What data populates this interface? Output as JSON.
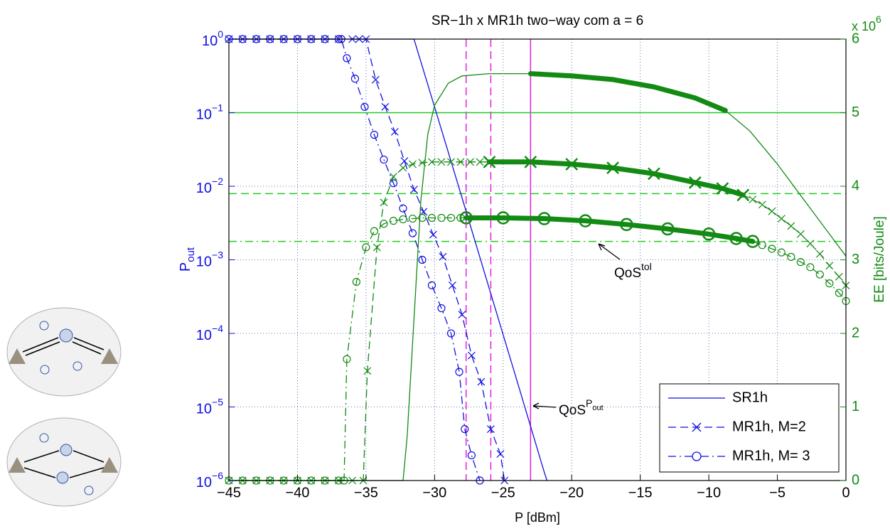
{
  "chart_data": {
    "type": "line",
    "title": "SR−1h x MR1h two−way com a = 6",
    "xlabel": "P [dBm]",
    "ylabel": {
      "text": "P",
      "sub": "out"
    },
    "y2label": "EE [bits/Joule]",
    "y2_multiplier": {
      "text": "x 10",
      "exponent": "6"
    },
    "xlim": [
      -45,
      0
    ],
    "ylim": [
      1e-06,
      1
    ],
    "ylog": true,
    "y2lim": [
      0,
      6
    ],
    "xticks": [
      {
        "value": -45,
        "label": "−45"
      },
      {
        "value": -40,
        "label": "−40"
      },
      {
        "value": -35,
        "label": "−35"
      },
      {
        "value": -30,
        "label": "−30"
      },
      {
        "value": -25,
        "label": "−25"
      },
      {
        "value": -20,
        "label": "−20"
      },
      {
        "value": -15,
        "label": "−15"
      },
      {
        "value": -10,
        "label": "−10"
      },
      {
        "value": -5,
        "label": "−5"
      },
      0
    ],
    "yticks": [
      {
        "value": 1e-06,
        "label": "10",
        "exponent": "−6"
      },
      {
        "value": 1e-05,
        "label": "10",
        "exponent": "−5"
      },
      {
        "value": 0.0001,
        "label": "10",
        "exponent": "−4"
      },
      {
        "value": 0.001,
        "label": "10",
        "exponent": "−3"
      },
      {
        "value": 0.01,
        "label": "10",
        "exponent": "−2"
      },
      {
        "value": 0.1,
        "label": "10",
        "exponent": "−1"
      },
      {
        "value": 1,
        "label": "10",
        "exponent": "0"
      }
    ],
    "y2ticks": [
      0,
      1,
      2,
      3,
      4,
      5,
      6
    ],
    "grid": true,
    "legend": "lower right",
    "series": [
      {
        "name": "SR1h",
        "color": "#1010e0",
        "style": "solid",
        "marker": "none",
        "x": [
          -45,
          -31.5,
          -30,
          -28,
          -26,
          -24,
          -22,
          -21.8
        ],
        "values": [
          1,
          1,
          0.12,
          0.007,
          0.0004,
          2.3e-05,
          1.3e-06,
          1e-06
        ]
      },
      {
        "name": "MR1h, M=2",
        "color": "#1010e0",
        "style": "dashed",
        "marker": "x",
        "x": [
          -45,
          -44,
          -43,
          -42,
          -41,
          -40,
          -39,
          -38,
          -37,
          -36,
          -35.5,
          -35,
          -34.3,
          -33.6,
          -32.9,
          -32.2,
          -31.5,
          -30.8,
          -30.1,
          -29.4,
          -28.7,
          -28,
          -27.3,
          -26.6,
          -25.9,
          -25.2,
          -24.9
        ],
        "values": [
          1,
          1,
          1,
          1,
          1,
          1,
          1,
          1,
          1,
          1,
          1,
          1,
          0.28,
          0.12,
          0.055,
          0.022,
          0.009,
          0.0045,
          0.0022,
          0.0011,
          0.00045,
          0.00018,
          5e-05,
          2.2e-05,
          5e-06,
          2.3e-06,
          1e-06
        ]
      },
      {
        "name": "MR1h, M= 3",
        "color": "#1010e0",
        "style": "dashdot",
        "marker": "o",
        "x": [
          -45,
          -44,
          -43,
          -42,
          -41,
          -40,
          -39,
          -38,
          -37,
          -36.8,
          -36.4,
          -35.8,
          -35.1,
          -34.4,
          -33.7,
          -33,
          -32.3,
          -31.6,
          -30.9,
          -30.2,
          -29.5,
          -28.8,
          -28.2,
          -27.8,
          -27.3,
          -26.7
        ],
        "values": [
          1,
          1,
          1,
          1,
          1,
          1,
          1,
          1,
          1,
          1,
          0.55,
          0.29,
          0.12,
          0.05,
          0.023,
          0.011,
          0.005,
          0.0023,
          0.001,
          0.00045,
          0.00022,
          0.0001,
          3e-05,
          5e-06,
          2.2e-06,
          1e-06
        ]
      },
      {
        "color": "#138a13",
        "axis": "y2",
        "style": "solid",
        "marker": "none",
        "feasible_range": [
          -23,
          -8.8
        ],
        "x": [
          -45,
          -32.3,
          -32,
          -31.5,
          -31,
          -30.5,
          -30,
          -29,
          -28,
          -26,
          -23,
          -20,
          -17,
          -14,
          -11,
          -8.8,
          -7,
          -5,
          -3,
          -1,
          0
        ],
        "values": [
          0,
          0,
          0.6,
          2.2,
          3.8,
          4.7,
          5.1,
          5.4,
          5.5,
          5.53,
          5.53,
          5.5,
          5.45,
          5.35,
          5.2,
          5.03,
          4.75,
          4.3,
          3.8,
          3.3,
          3.05
        ]
      },
      {
        "color": "#138a13",
        "axis": "y2",
        "style": "dashed",
        "marker": "x",
        "feasible_range": [
          -26,
          -7.5
        ],
        "x": [
          -45,
          -44,
          -43,
          -42,
          -41,
          -40,
          -39,
          -38,
          -37,
          -36,
          -35.2,
          -34.9,
          -34.2,
          -33.7,
          -33,
          -32.3,
          -31.6,
          -30.9,
          -30.2,
          -29.5,
          -28.8,
          -28.1,
          -27.4,
          -26.7,
          -26,
          -23,
          -20,
          -17,
          -14,
          -11,
          -9,
          -7.5,
          -6.8,
          -6.1,
          -5.4,
          -4.7,
          -4,
          -3.3,
          -2.6,
          -1.9,
          -1.2,
          -0.5,
          0
        ],
        "values": [
          0,
          0,
          0,
          0,
          0,
          0,
          0,
          0,
          0,
          0,
          0,
          1.49,
          3.17,
          3.78,
          4.13,
          4.25,
          4.3,
          4.32,
          4.33,
          4.33,
          4.33,
          4.33,
          4.33,
          4.33,
          4.33,
          4.33,
          4.3,
          4.25,
          4.17,
          4.05,
          3.97,
          3.88,
          3.82,
          3.75,
          3.66,
          3.56,
          3.46,
          3.35,
          3.22,
          3.08,
          2.92,
          2.77,
          2.65
        ]
      },
      {
        "color": "#138a13",
        "axis": "y2",
        "style": "dashdot",
        "marker": "o",
        "feasible_range": [
          -27.7,
          -6.8
        ],
        "x": [
          -45,
          -44,
          -43,
          -42,
          -41,
          -40,
          -39,
          -38,
          -37,
          -36.6,
          -36.4,
          -35.7,
          -35,
          -34.4,
          -33.7,
          -33,
          -32.3,
          -31.6,
          -30.9,
          -30.2,
          -29.5,
          -28.8,
          -28.1,
          -27.7,
          -25,
          -22,
          -19,
          -16,
          -13,
          -10,
          -8,
          -6.8,
          -6.1,
          -5.4,
          -4.7,
          -4,
          -3.3,
          -2.6,
          -1.9,
          -1.2,
          -0.5,
          0
        ],
        "values": [
          0,
          0,
          0,
          0,
          0,
          0,
          0,
          0,
          0,
          0,
          1.65,
          2.7,
          3.17,
          3.39,
          3.49,
          3.53,
          3.55,
          3.56,
          3.57,
          3.57,
          3.57,
          3.57,
          3.57,
          3.57,
          3.57,
          3.56,
          3.53,
          3.48,
          3.42,
          3.35,
          3.29,
          3.25,
          3.2,
          3.15,
          3.1,
          3.04,
          2.97,
          2.9,
          2.8,
          2.68,
          2.55,
          2.44
        ]
      }
    ],
    "vertical_lines": [
      {
        "x": -27.7,
        "color": "#e020e0",
        "style": "dashed"
      },
      {
        "x": -25.9,
        "color": "#e020e0",
        "style": "dashed"
      },
      {
        "x": -23,
        "color": "#e020e0",
        "style": "solid"
      }
    ],
    "horizontal_lines": [
      {
        "y": 5,
        "axis": "y2",
        "color": "#22cc22",
        "style": "solid"
      },
      {
        "y": 3.9,
        "axis": "y2",
        "color": "#22cc22",
        "style": "dashed"
      },
      {
        "y": 3.25,
        "axis": "y2",
        "color": "#22cc22",
        "style": "dashdot"
      }
    ],
    "annotations": [
      {
        "text": "QoS",
        "sup": "tol"
      },
      {
        "text": "QoS",
        "sup": "P",
        "subsup": "out"
      }
    ]
  }
}
